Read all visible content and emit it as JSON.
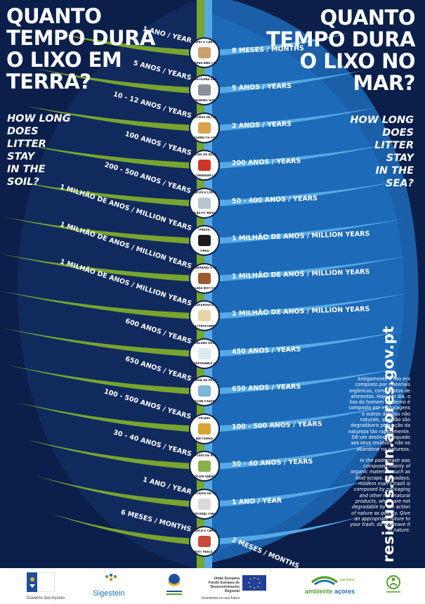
{
  "titles": {
    "left_pt": "QUANTO\nTEMPO DURA\nO LIXO EM\nTERRA?",
    "left_en": "HOW LONG\nDOES\nLITTER\nSTAY\nIN THE\nSOIL?",
    "right_pt": "QUANTO\nTEMPO DURA\nO LIXO NO\nMAR?",
    "right_en": "HOW LONG\nDOES\nLITTER\nSTAY\nIN THE\nSEA?"
  },
  "items": [
    {
      "label_top": "PAPEL E CARTÃO",
      "label_bottom": "PAPER AND CARDBOARD",
      "land": "1 ANO / YEAR",
      "sea": "8 MESES / MONTHS",
      "color": "#c8a26a"
    },
    {
      "label_top": "PASTILHAS ELÁSTICAS",
      "label_bottom": "CHEWING GUMS",
      "land": "5 ANOS / YEARS",
      "sea": "5 ANOS / YEARS",
      "color": "#8a8f9a"
    },
    {
      "label_top": "FILTROS DE CIGARROS",
      "label_bottom": "CIGARETTE FILTERS",
      "land": "10 - 12 ANOS / YEARS",
      "sea": "2 ANOS / YEARS",
      "color": "#d9a24e"
    },
    {
      "label_top": "LATAS DE ALUMÍNIO",
      "label_bottom": "ALUMINIUM CANS",
      "land": "100 ANOS / YEARS",
      "sea": "200 ANOS / YEARS",
      "color": "#d0352b"
    },
    {
      "label_top": "SACOS E COPOS DE PLÁSTICO",
      "label_bottom": "PLASTIC BAGS AND CUPS",
      "land": "200 - 500 ANOS / YEARS",
      "sea": "50 - 400 ANOS / YEARS",
      "color": "#b9c4cf"
    },
    {
      "label_top": "PNEUS",
      "label_bottom": "TIRES",
      "land": "1 MILHÃO DE ANOS / MILLION YEARS",
      "sea": "1 MILHÃO DE ANOS / MILLION YEARS",
      "color": "#1b1b1b"
    },
    {
      "label_top": "GARRAFAS E FRASCOS DE VIDRO",
      "label_bottom": "GLASS BOTTLES AND JARS",
      "land": "1 MILHÃO DE ANOS / MILLION YEARS",
      "sea": "1 MILHÃO DE ANOS / MILLION YEARS",
      "color": "#9a5a2e"
    },
    {
      "label_top": "ESFEROVITE",
      "label_bottom": "STYROFOAM",
      "land": "1 MILHÃO DE ANOS / MILLION YEARS",
      "sea": "1 MILHÃO DE ANOS / MILLION YEARS",
      "color": "#e7d7a8"
    },
    {
      "label_top": "FRALDAS DESCARTÁVEIS",
      "label_bottom": "DISPOSABLE DIAPERS",
      "land": "600 ANOS / YEARS",
      "sea": "450 ANOS / YEARS",
      "color": "#dfe9f2"
    },
    {
      "label_top": "LINHA DE PESCA DE NYLON",
      "label_bottom": "NYLON FISHING LINE",
      "land": "650 ANOS / YEARS",
      "sea": "650 ANOS / YEARS",
      "color": "#7fb5d8"
    },
    {
      "label_top": "PILHAS",
      "label_bottom": "BATTERIES",
      "land": "100 - 500 ANOS / YEARS",
      "sea": "100 - 500 ANOS / YEARS",
      "color": "#d7a531"
    },
    {
      "label_top": "TECIDO DE NYLON",
      "label_bottom": "NYLON FABRIC",
      "land": "30 - 40 ANOS / YEARS",
      "sea": "30 - 40 ANOS / YEARS",
      "color": "#8ab04a"
    },
    {
      "label_top": "TECIDOS DE FIBRA NATURAL",
      "label_bottom": "NATURAL FIBER FABRICS",
      "land": "1 ANO / YEAR",
      "sea": "1 ANO / YEAR",
      "color": "#d9d9d9"
    },
    {
      "label_top": "CASCA E CAROÇOS DE FRUTA",
      "label_bottom": "FRUIT PEELS AND SEEDS",
      "land": "6 MESES / MONTHS",
      "sea": "2 MESES / MONTHS",
      "color": "#c94a3a"
    }
  ],
  "side_text": {
    "pt": "Antigamente o lixo era composto por materiais orgânicos, como restos de alimentos. Hoje em dia, o lixo do homem moderno é composto por embalagens e outros detritos não naturais, que não são degradáveis pela ação da natureza tão rapidamente. Dê um destino adequado aos seus resíduos, não os abandone na natureza.",
    "en": "In the past, trash was composed mainly of organic materials such as food scraps. Nowadays, modern man's trash is composed by packaging and other non-natural products, which are not degradable by the action of nature as quickly. Give an appropriate future to your trash, do not leave it in nature."
  },
  "url": "residuos.srrn.azores.gov.pt",
  "footer": {
    "governo": "Governo dos Açores",
    "sigestein": "Sigestein",
    "uniao_1": "União Europeia",
    "uniao_2": "Fundo Europeu de",
    "uniao_3": "Desenvolvimento Regional",
    "uniao_4": "Investimos no seu futuro",
    "ambiente_1": "ambiente",
    "ambiente_2": "açores",
    "ambiente_3": "parceiros"
  },
  "colors": {
    "navy": "#0b1f4a",
    "green": "#77a52f",
    "blue": "#2f87cf",
    "light_blue": "#55a9e6"
  }
}
